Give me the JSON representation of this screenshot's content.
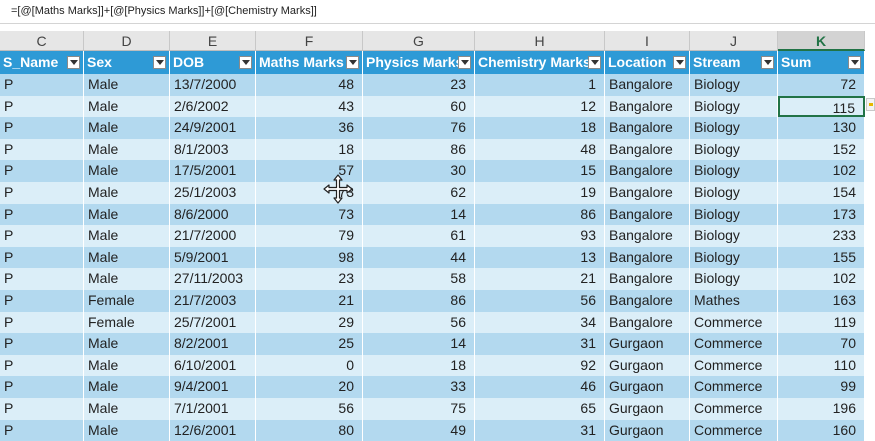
{
  "formula_bar": {
    "formula": "=[@[Maths Marks]]+[@[Physics Marks]]+[@[Chemistry Marks]]"
  },
  "column_letters": [
    "C",
    "D",
    "E",
    "F",
    "G",
    "H",
    "I",
    "J",
    "K"
  ],
  "selected_column": "K",
  "table": {
    "headers": [
      "S_Name",
      "Sex",
      "DOB",
      "Maths Marks",
      "Physics Marks",
      "Chemistry Marks",
      "Location",
      "Stream",
      "Sum"
    ],
    "rows": [
      [
        "P",
        "Male",
        "13/7/2000",
        "48",
        "23",
        "1",
        "Bangalore",
        "Biology",
        "72"
      ],
      [
        "P",
        "Male",
        "2/6/2002",
        "43",
        "60",
        "12",
        "Bangalore",
        "Biology",
        "115"
      ],
      [
        "P",
        "Male",
        "24/9/2001",
        "36",
        "76",
        "18",
        "Bangalore",
        "Biology",
        "130"
      ],
      [
        "P",
        "Male",
        "8/1/2003",
        "18",
        "86",
        "48",
        "Bangalore",
        "Biology",
        "152"
      ],
      [
        "P",
        "Male",
        "17/5/2001",
        "57",
        "30",
        "15",
        "Bangalore",
        "Biology",
        "102"
      ],
      [
        "P",
        "Male",
        "25/1/2003",
        "73",
        "62",
        "19",
        "Bangalore",
        "Biology",
        "154"
      ],
      [
        "P",
        "Male",
        "8/6/2000",
        "73",
        "14",
        "86",
        "Bangalore",
        "Biology",
        "173"
      ],
      [
        "P",
        "Male",
        "21/7/2000",
        "79",
        "61",
        "93",
        "Bangalore",
        "Biology",
        "233"
      ],
      [
        "P",
        "Male",
        "5/9/2001",
        "98",
        "44",
        "13",
        "Bangalore",
        "Biology",
        "155"
      ],
      [
        "P",
        "Male",
        "27/11/2003",
        "23",
        "58",
        "21",
        "Bangalore",
        "Biology",
        "102"
      ],
      [
        "P",
        "Female",
        "21/7/2003",
        "21",
        "86",
        "56",
        "Bangalore",
        "Mathes",
        "163"
      ],
      [
        "P",
        "Female",
        "25/7/2001",
        "29",
        "56",
        "34",
        "Bangalore",
        "Commerce",
        "119"
      ],
      [
        "P",
        "Male",
        "8/2/2001",
        "25",
        "14",
        "31",
        "Gurgaon",
        "Commerce",
        "70"
      ],
      [
        "P",
        "Male",
        "6/10/2001",
        "0",
        "18",
        "92",
        "Gurgaon",
        "Commerce",
        "110"
      ],
      [
        "P",
        "Male",
        "9/4/2001",
        "20",
        "33",
        "46",
        "Gurgaon",
        "Commerce",
        "99"
      ],
      [
        "P",
        "Male",
        "7/1/2001",
        "56",
        "75",
        "65",
        "Gurgaon",
        "Commerce",
        "196"
      ],
      [
        "P",
        "Male",
        "12/6/2001",
        "80",
        "49",
        "31",
        "Gurgaon",
        "Commerce",
        "160"
      ]
    ]
  },
  "colors": {
    "header_bg": "#2e9ad6",
    "band_dark": "#b3d9ef",
    "band_light": "#dbeef8",
    "selection": "#217346"
  },
  "icons": {
    "cursor": "move-cursor-icon",
    "filter": "filter-dropdown-icon",
    "quick_analysis": "quick-analysis-icon"
  }
}
